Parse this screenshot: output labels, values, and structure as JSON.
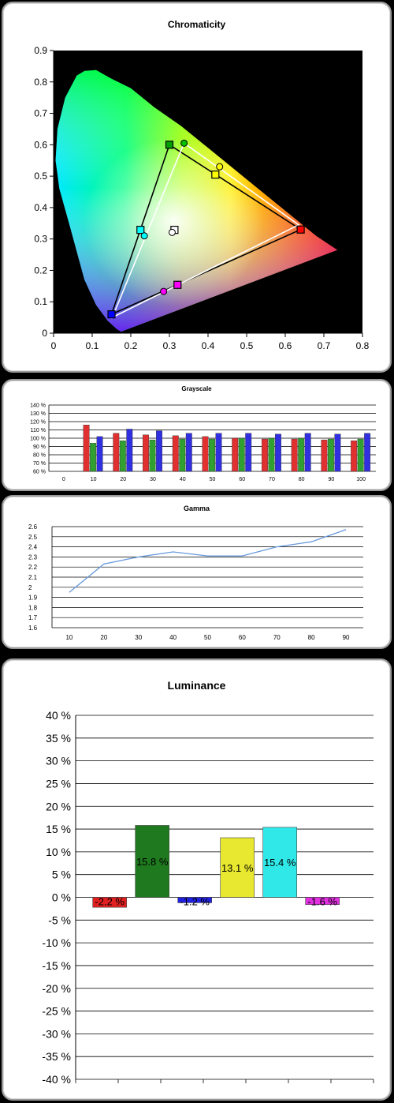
{
  "chart_data": [
    {
      "type": "scatter",
      "title": "Chromaticity",
      "xlim": [
        0,
        0.8
      ],
      "ylim": [
        0,
        0.9
      ],
      "x_ticks": [
        "0",
        "0.1",
        "0.2",
        "0.3",
        "0.4",
        "0.5",
        "0.6",
        "0.7",
        "0.8"
      ],
      "y_ticks": [
        "0",
        "0.1",
        "0.2",
        "0.3",
        "0.4",
        "0.5",
        "0.6",
        "0.7",
        "0.8",
        "0.9"
      ],
      "reference_gamut": [
        [
          0.64,
          0.33
        ],
        [
          0.3,
          0.6
        ],
        [
          0.15,
          0.06
        ]
      ],
      "measured_gamut": [
        [
          0.635,
          0.345
        ],
        [
          0.338,
          0.605
        ],
        [
          0.152,
          0.05
        ]
      ],
      "reference_points": [
        {
          "x": 0.64,
          "y": 0.33,
          "color": "#ff0000"
        },
        {
          "x": 0.3,
          "y": 0.6,
          "color": "#00a000"
        },
        {
          "x": 0.15,
          "y": 0.06,
          "color": "#0000ff"
        },
        {
          "x": 0.225,
          "y": 0.329,
          "color": "#00ffff"
        },
        {
          "x": 0.321,
          "y": 0.154,
          "color": "#ff00ff"
        },
        {
          "x": 0.419,
          "y": 0.505,
          "color": "#ffff00"
        },
        {
          "x": 0.313,
          "y": 0.329,
          "color": "#ffffff"
        }
      ],
      "measured_points": [
        {
          "x": 0.338,
          "y": 0.605,
          "color": "#00c000"
        },
        {
          "x": 0.235,
          "y": 0.31,
          "color": "#00ffff"
        },
        {
          "x": 0.285,
          "y": 0.133,
          "color": "#ff00ff"
        },
        {
          "x": 0.43,
          "y": 0.53,
          "color": "#ffff00"
        },
        {
          "x": 0.307,
          "y": 0.321,
          "color": "#ffffff"
        }
      ]
    },
    {
      "type": "bar",
      "title": "Grayscale",
      "categories": [
        "0",
        "10",
        "20",
        "30",
        "40",
        "50",
        "60",
        "70",
        "80",
        "90",
        "100"
      ],
      "y_ticks": [
        "140 %",
        "130 %",
        "120 %",
        "110 %",
        "100 %",
        "90 %",
        "80 %",
        "70 %",
        "60 %"
      ],
      "ylim": [
        60,
        140
      ],
      "series": [
        {
          "color": "#e03030",
          "values": [
            null,
            116,
            106,
            104,
            103,
            102,
            100,
            99,
            99,
            98,
            97
          ]
        },
        {
          "color": "#30a030",
          "values": [
            null,
            94,
            97,
            98,
            99,
            99,
            100,
            100,
            100,
            99,
            99
          ]
        },
        {
          "color": "#3030e0",
          "values": [
            null,
            102,
            111,
            109,
            106,
            106,
            106,
            105,
            106,
            105,
            106
          ]
        }
      ]
    },
    {
      "type": "line",
      "title": "Gamma",
      "x": [
        10,
        20,
        30,
        40,
        50,
        60,
        70,
        80,
        90
      ],
      "x_ticks": [
        "10",
        "20",
        "30",
        "40",
        "50",
        "60",
        "70",
        "80",
        "90"
      ],
      "y_ticks": [
        "2.6",
        "2.5",
        "2.4",
        "2.3",
        "2.2",
        "2.1",
        "2",
        "1.9",
        "1.8",
        "1.7",
        "1.6"
      ],
      "ylim": [
        1.6,
        2.6
      ],
      "series": [
        {
          "color": "#6699dd",
          "values": [
            1.95,
            2.23,
            2.3,
            2.35,
            2.31,
            2.31,
            2.4,
            2.45,
            2.57
          ]
        }
      ]
    },
    {
      "type": "bar",
      "title": "Luminance",
      "ylim": [
        -40,
        40
      ],
      "y_ticks": [
        "40 %",
        "35 %",
        "30 %",
        "25 %",
        "20 %",
        "15 %",
        "10 %",
        "5 %",
        "0 %",
        "-5 %",
        "-10 %",
        "-15 %",
        "-20 %",
        "-25 %",
        "-30 %",
        "-35 %",
        "-40 %"
      ],
      "values": [
        -2.2,
        15.8,
        -1.2,
        13.1,
        15.4,
        -1.6
      ],
      "labels": [
        "-2.2 %",
        "15.8 %",
        "-1.2 %",
        "13.1 %",
        "15.4 %",
        "-1.6 %"
      ],
      "colors": [
        "#e02020",
        "#1f7a1f",
        "#2020e0",
        "#e8e830",
        "#30e8e8",
        "#e030e0"
      ]
    }
  ]
}
